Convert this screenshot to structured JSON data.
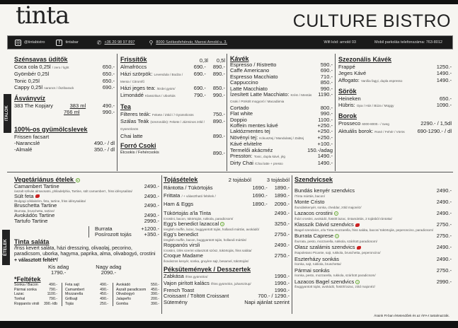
{
  "header": {
    "logo": "tinta",
    "title": "CULTURE BISTRO"
  },
  "infobar": {
    "instagram": "@tintabistro",
    "facebook": "tintabar",
    "phone": "+36 20 98 97 897",
    "address": "8000 Székesfehérvár, Marosi Arnold u. 3.",
    "wifi": "Wifi kód: arnold 03",
    "parking": "Mobil parkolás telefonszáma: 763-8012",
    "icons": [
      "instagram-icon",
      "facebook-icon",
      "phone-icon",
      "location-pin-icon"
    ]
  },
  "tabs": {
    "drinks": "ITALOK",
    "food": "ÉTELEK"
  },
  "soft_drinks": {
    "title": "Szénsavas üdítők",
    "items": [
      {
        "name": "Coca cola 0,25l",
        "note": "/ zero / light",
        "price": "650.-"
      },
      {
        "name": "Gyömbér 0,25l",
        "note": "",
        "price": "650.-"
      },
      {
        "name": "Tonic 0,25l",
        "note": "",
        "price": "650.-"
      },
      {
        "name": "Cappy 0,25l",
        "note": "narancs / őszibarack",
        "price": "690.-"
      }
    ]
  },
  "water": {
    "title": "Ásványvíz",
    "name": "383 The Kopjary",
    "sizes": [
      {
        "size": "383 ml",
        "price": "490.-"
      },
      {
        "size": "766 ml",
        "price": "990.-"
      }
    ]
  },
  "juices": {
    "title": "100%-os gyümölcslevek",
    "subtitle": "Frissen facsart",
    "items": [
      {
        "name": "-Narancslé",
        "price": "490.- / dl"
      },
      {
        "name": "-Almalé",
        "price": "350.- / dl"
      }
    ]
  },
  "refreshers": {
    "title": "Frissítők",
    "cols": [
      "0,3l",
      "0,5l"
    ],
    "items": [
      {
        "name": "Almafröccs",
        "note": "",
        "p1": "690.-",
        "p2": "890.-"
      },
      {
        "name": "Házi szörpök:",
        "note": "Levendula / Bodza / Menta / Citromfű",
        "p1": "690.-",
        "p2": "890.-"
      },
      {
        "name": "Házi jeges tea:",
        "note": "/Erdei gyüm/",
        "p1": "690.-",
        "p2": "850.-"
      },
      {
        "name": "Limonádé",
        "note": "Klasszikus / Uborkás",
        "p1": "790.-",
        "p2": "990.-"
      }
    ]
  },
  "tea": {
    "title": "Tea",
    "items": [
      {
        "name": "Filteres teák:",
        "note": "Fekete / Zöld / / Gyümölcsös",
        "price": "750.-"
      },
      {
        "name": "Szálas Teák",
        "note": "(szezonális): Fekete / Jázminos zöld / Gyümölcsös",
        "price": "890.-"
      },
      {
        "name": "Chai latte",
        "note": "",
        "price": "890.-"
      }
    ]
  },
  "chocolate": {
    "title": "Forró Csoki",
    "items": [
      {
        "name": "Étcsokis / Fehércsokis",
        "price": "890.-"
      }
    ]
  },
  "coffee": {
    "title": "Kávék",
    "items": [
      {
        "name": "Espresso / Ristretto",
        "note": "",
        "price": "590.-"
      },
      {
        "name": "Caffe Americano",
        "note": "",
        "price": "690.-"
      },
      {
        "name": "Espresso Macchiato",
        "note": "",
        "price": "710.-"
      },
      {
        "name": "Cappuccino",
        "note": "",
        "price": "850.-"
      },
      {
        "name": "Latte Macchiato",
        "note": "",
        "price": "990.-"
      },
      {
        "name": "Ízesített Latte Macchiato:",
        "note": "Krém / Mentás Csoki / Pörkölt mogyoró / Macadámia",
        "price": "1190.-"
      },
      {
        "name": "Cortado",
        "note": "",
        "price": "800.-"
      },
      {
        "name": "Flat white",
        "note": "",
        "price": "990.-"
      },
      {
        "name": "Doppio",
        "note": "",
        "price": "1100.-"
      },
      {
        "name": "Koffein mentes kávé",
        "note": "",
        "price": "+250.-"
      },
      {
        "name": "Laktózmentes tej",
        "note": "",
        "price": "+250.-"
      },
      {
        "name": "Növényi tej:",
        "note": "Kókusztej / Mandulatej / Zabtej",
        "price": "+250.-"
      },
      {
        "name": "Kávé elvitelre",
        "note": "",
        "price": "+100.-"
      },
      {
        "name": "Termelői akácméz",
        "note": "",
        "price": "150.-/adag"
      },
      {
        "name": "Presston:",
        "note": "Tonic, dupla kávé, jég",
        "price": "1490.-"
      },
      {
        "name": "Dirty Chai",
        "note": "/Chai latte + presso",
        "price": "1490.-"
      }
    ]
  },
  "seasonal": {
    "title": "Szezonális Kávék",
    "items": [
      {
        "name": "Frappé",
        "note": "",
        "price": "1250.-"
      },
      {
        "name": "Jeges Kávé",
        "note": "",
        "price": "1490.-"
      },
      {
        "name": "Affogato:",
        "note": "Vanília fagyi, dupla espresso",
        "price": "1490.-"
      }
    ]
  },
  "beers": {
    "title": "Sörök",
    "items": [
      {
        "name": "Heineken",
        "note": "",
        "price": "650.-"
      },
      {
        "name": "Hübris:",
        "note": "Opa / Hús / Búza / Müggy",
        "price": "1090.-"
      }
    ]
  },
  "wines": {
    "title": "Borok",
    "items": [
      {
        "name": "Prosseco",
        "note": "6000-8000.- / üveg",
        "price": "2290.- / 1,5dl"
      },
      {
        "name": "Aktuális borok:",
        "note": "Rosé / Fehér / Vörös",
        "price": "690-1290.- / dl"
      }
    ]
  },
  "vegetarian": {
    "title": "Vegetáriánus ételek",
    "items": [
      {
        "name": "Camambert Tartine",
        "desc": "/aszalt szilvás almacsatni, philadelphia, Tartine, sült camambert , friss idénysaláta/",
        "price": "2490.-",
        "tag": ""
      },
      {
        "name": "Sült feta",
        "desc": "/Bulgogi céklakrém, feta, tartine, friss idénysaláta/",
        "price": "2490.-",
        "tag": "hot"
      },
      {
        "name": "Bruschetta Tartine",
        "desc": "/Burrata, bruschetta, tartine/",
        "price": "2490.-",
        "tag": ""
      },
      {
        "name": "Avokádós Tartine",
        "desc": "",
        "price": "2490.-",
        "tag": ""
      },
      {
        "name": "Tartufo Tartine",
        "desc": "",
        "price": "2990.-",
        "tag": ""
      }
    ],
    "extras": [
      {
        "name": "Burrata",
        "price": "+1200.-"
      },
      {
        "name": "Posírozott tojás",
        "price": "+350.-"
      }
    ]
  },
  "salad": {
    "title": "Tinta saláta",
    "desc": "/friss kevert saláta, házi dresszing, olivaolaj, pecorino, paradicsom, uborka, hagyma, paprika, alma, olivabogyó, crostini",
    "desc_bold": "+ választott feltét*/",
    "sizes": [
      {
        "label": "Kis adag",
        "price": "1790.-"
      },
      {
        "label": "Nagy adag",
        "price": "2090.-"
      }
    ]
  },
  "toppings": {
    "title": "*Feltétek",
    "columns": [
      [
        {
          "name": "Sonka / Bacon",
          "price": "490.-"
        },
        {
          "name": "Pármai sonka",
          "price": "790.-"
        },
        {
          "name": "Lazac",
          "price": "1100.-"
        },
        {
          "name": "Tonhal",
          "price": "790.-"
        },
        {
          "name": "Roppanós virsli",
          "price": "390.-/db"
        }
      ],
      [
        {
          "name": "Feta sajt",
          "price": "490.-"
        },
        {
          "name": "Camambert",
          "price": "490.-"
        },
        {
          "name": "Mozzarella",
          "price": "450.-"
        },
        {
          "name": "Grillsajt",
          "price": "490.-"
        },
        {
          "name": "Tojás",
          "price": "250.-"
        }
      ],
      [
        {
          "name": "Avokádó",
          "price": "550.-"
        },
        {
          "name": "Aszalt paradicsom",
          "price": "450.-"
        },
        {
          "name": "Olivabogyó",
          "price": "390.-"
        },
        {
          "name": "Jalapeño",
          "price": "200.-"
        },
        {
          "name": "Gomba",
          "price": "390.-"
        }
      ]
    ]
  },
  "eggs": {
    "title": "Tojásételek",
    "cols": [
      "2 tojásból",
      "3 tojásból"
    ],
    "items": [
      {
        "name": "Rántotta / Tükörtojás",
        "note": "",
        "p1": "1690.-",
        "p2": "1890.-"
      },
      {
        "name": "Frittata",
        "note": "/ + választható feltétek /",
        "p1": "1690.-",
        "p2": "1890.-"
      },
      {
        "name": "Ham & Eggs",
        "note": "",
        "p1": "1890.-",
        "p2": "2090.-"
      }
    ],
    "specials": [
      {
        "name": "Tükörtojás a'la Tinta",
        "desc": "/crostini, bacon, tükörtojás, rukkola, paradicsom/",
        "price": "2490.-",
        "tag": ""
      },
      {
        "name": "Egg's benedict lazaccal",
        "desc": "/english muffin, lazac, buggyantott tojás, hollandi mártás, avokádó/",
        "price": "3250.-",
        "tag": "veg"
      },
      {
        "name": "Egg's benedict",
        "desc": "/english muffin, bacon, buggyantott tojás, hollandi mártás/",
        "price": "2750.-",
        "tag": ""
      },
      {
        "name": "Roppanós virsli",
        "desc": "/crostini, ízlés szerint választott szósz, tükörtojás, friss saláta/",
        "price": "2490.-",
        "tag": ""
      },
      {
        "name": "Croque Madame",
        "desc": "/kovászos kenyér, sonka, gruyère sajt, besamel, tükörtojás/",
        "price": "2750.-",
        "tag": ""
      }
    ]
  },
  "pastry": {
    "title": "Péksütemények / Desszertek",
    "items": [
      {
        "name": "Zabkása",
        "note": "/friss gyümölcs/",
        "price": "1990.-"
      },
      {
        "name": "Vajon pirított kalács",
        "note": "/friss gyümölcs, juharszirup/",
        "price": "1990.-"
      },
      {
        "name": "French Toast",
        "note": "",
        "price": "1990.-"
      },
      {
        "name": "Croissant / Töltött Croissant",
        "note": "",
        "price": "700.- / 1290.-"
      },
      {
        "name": "Sütemény",
        "note": "",
        "price": "Napi ajánlat szerint"
      }
    ]
  },
  "sandwiches": {
    "title": "Szendvicsek",
    "items": [
      {
        "name": "Bundás kenyér szendvics",
        "desc": "/Tinta mártás, bacon/",
        "price": "2490.-",
        "tag": ""
      },
      {
        "name": "Monte Cristo",
        "desc": "/bundáskenyér, sonka, cheddar, zöld majonéz/",
        "price": "2490.-",
        "tag": ""
      },
      {
        "name": "Lazacos crostini",
        "desc": "/házi crostini, avokádó, füstölt lazac, tintamártás, 2 tojásból rántotta/",
        "price": "2490.-",
        "tag": "veg"
      },
      {
        "name": "Klasszik Dávid szendvics",
        "desc": "/Bagel szendvics, a'la Tinta mozzarella, friss saláta, bacon/ tükörtojás, peperoncino, paradicsom/",
        "price": "2750.-",
        "tag": "hot"
      },
      {
        "name": "Burrata Caprese",
        "desc": "/burrata, pesto, mozzarella, rukkola, szárított paradicsom/",
        "price": "2750.-",
        "tag": "veg"
      },
      {
        "name": "Olasz szalámis szendvics",
        "desc": "/Napoletano Picante, sajt, rukkola, bruschetta, peperoncino/",
        "price": "2490.-",
        "tag": "hot"
      },
      {
        "name": "Eszterházy sonkás",
        "desc": "/sonka, sajt, rukkola, bruschetta/",
        "price": "2490.-",
        "tag": ""
      },
      {
        "name": "Pármai sonkás",
        "desc": "/sonka, pesto, mozzarella, rukkola, szárított paradicsom/",
        "price": "2750.-",
        "tag": ""
      },
      {
        "name": "Lazacos Bagel szendvics",
        "desc": "/buggyantott tojás, avokádó, füstölt lazac, zöld majonéz/",
        "price": "2990.-",
        "tag": "veg"
      }
    ]
  },
  "footer": {
    "note": "Áraink Ft-ban értetendőek és az ÁFA-t tartalmazzák."
  },
  "colors": {
    "background": "#f6f5f1",
    "bar": "#1a1a1a",
    "vegan": "#66aa33",
    "spicy": "#cc2222"
  }
}
